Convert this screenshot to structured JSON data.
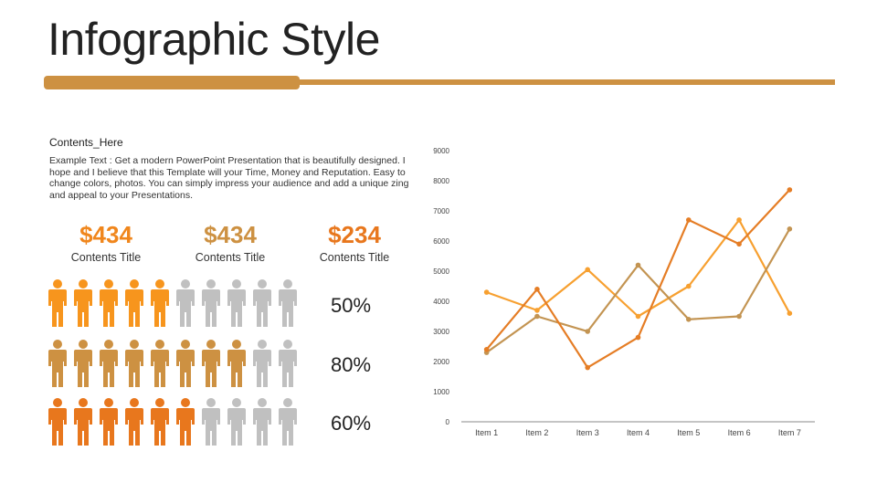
{
  "slide": {
    "title": "Infographic Style",
    "accent_color": "#cd9142",
    "contents_heading": "Contents_Here",
    "body_text": "Example Text : Get a modern PowerPoint  Presentation that is beautifully designed. I hope and I believe that this Template will your Time, Money and Reputation. Easy to change colors, photos. You can simply impress your audience and add a unique zing and appeal to your Presentations."
  },
  "stats": [
    {
      "value": "$434",
      "label": "Contents Title",
      "color": "#f0861c"
    },
    {
      "value": "$434",
      "label": "Contents Title",
      "color": "#cd9142"
    },
    {
      "value": "$234",
      "label": "Contents Title",
      "color": "#e8771d"
    }
  ],
  "people_rows": [
    {
      "filled": 5,
      "total": 10,
      "color": "#f7951d",
      "percent_value": "50",
      "percent_symbol": "%"
    },
    {
      "filled": 8,
      "total": 10,
      "color": "#cd9142",
      "percent_value": "80",
      "percent_symbol": "%"
    },
    {
      "filled": 6,
      "total": 10,
      "color": "#e8771d",
      "percent_value": "60",
      "percent_symbol": "%"
    }
  ],
  "people_inactive_color": "#c0c0c0",
  "chart_data": {
    "type": "line",
    "categories": [
      "Item 1",
      "Item 2",
      "Item 3",
      "Item 4",
      "Item 5",
      "Item 6",
      "Item 7"
    ],
    "ylim": [
      0,
      9000
    ],
    "yticks": [
      "0",
      "1000",
      "2000",
      "3000",
      "4000",
      "5000",
      "6000",
      "7000",
      "8000",
      "9000"
    ],
    "grid": false,
    "legend": "none",
    "series": [
      {
        "values": [
          4300,
          3700,
          5050,
          3500,
          4500,
          6700,
          3600
        ],
        "color": "#f7a030"
      },
      {
        "values": [
          2300,
          3500,
          3000,
          5200,
          3400,
          3500,
          6400
        ],
        "color": "#c39452"
      },
      {
        "values": [
          2400,
          4400,
          1800,
          2800,
          6700,
          5900,
          7700
        ],
        "color": "#e57d25"
      }
    ]
  }
}
